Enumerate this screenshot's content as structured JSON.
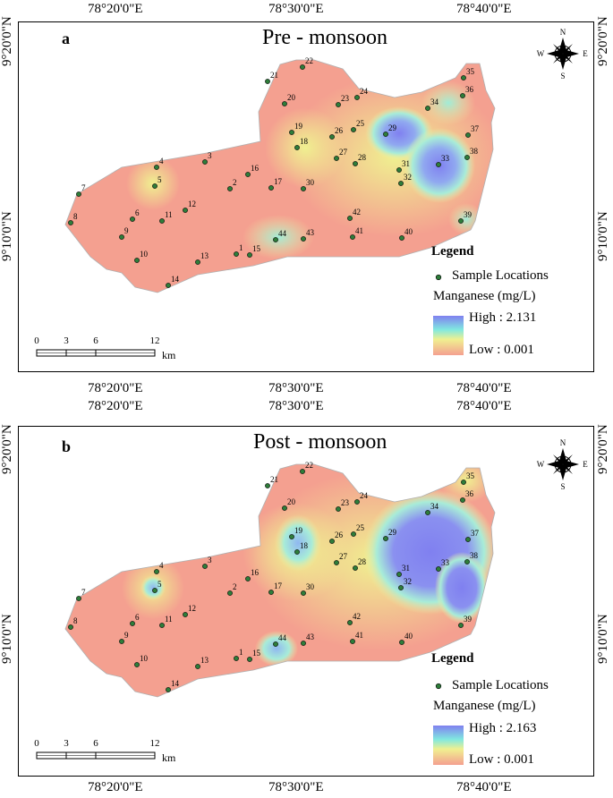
{
  "axes": {
    "top_labels": [
      "78°20'0\"E",
      "78°30'0\"E",
      "78°40'0\"E"
    ],
    "bottom_labels": [
      "78°20'0\"E",
      "78°30'0\"E",
      "78°40'0\"E"
    ],
    "left_labels": [
      "9°20'0\"N",
      "9°10'0\"N"
    ],
    "right_labels": [
      "9°20'0\"N",
      "9°10'0\"N"
    ]
  },
  "panels": [
    {
      "tag": "a",
      "title": "Pre - monsoon",
      "legend": {
        "title": "Legend",
        "sample_label": "Sample Locations",
        "parameter_label": "Manganese (mg/L)",
        "high_label": "High : 2.131",
        "low_label": "Low : 0.001"
      }
    },
    {
      "tag": "b",
      "title": "Post - monsoon",
      "legend": {
        "title": "Legend",
        "sample_label": "Sample Locations",
        "parameter_label": "Manganese (mg/L)",
        "high_label": "High : 2.163",
        "low_label": "Low : 0.001"
      }
    }
  ],
  "scale_bar": {
    "ticks": [
      "0",
      "3",
      "6",
      "12"
    ],
    "unit": "km"
  },
  "north_arrow": {
    "n": "N",
    "s": "S",
    "e": "E",
    "w": "W"
  },
  "sample_ids": [
    "1",
    "2",
    "3",
    "4",
    "5",
    "6",
    "7",
    "8",
    "9",
    "10",
    "11",
    "12",
    "13",
    "14",
    "15",
    "16",
    "17",
    "18",
    "19",
    "20",
    "21",
    "22",
    "23",
    "24",
    "25",
    "26",
    "27",
    "28",
    "29",
    "30",
    "31",
    "32",
    "33",
    "34",
    "35",
    "36",
    "37",
    "38",
    "39",
    "40",
    "41",
    "42",
    "43",
    "44"
  ],
  "colors": {
    "high": "#8080f0",
    "mid_high": "#80e8e0",
    "mid": "#f0f090",
    "low": "#f4a090",
    "point_fill": "#2e7d3a"
  }
}
